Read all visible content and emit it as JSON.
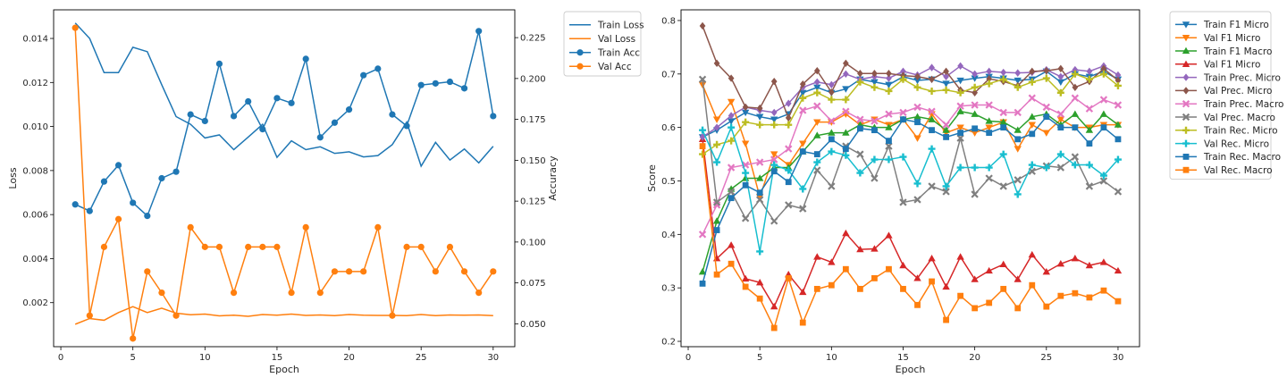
{
  "chart_data": [
    {
      "type": "line",
      "xlabel": "Epoch",
      "ylabel": "Loss",
      "ylabel_right": "Accuracy",
      "xlim": [
        -0.5,
        31.5
      ],
      "ylim": [
        0.0,
        0.0153
      ],
      "ylim_right": [
        0.036,
        0.242
      ],
      "x_ticks": [
        "0",
        "5",
        "10",
        "15",
        "20",
        "25",
        "30"
      ],
      "y_ticks": [
        "0.002",
        "0.004",
        "0.006",
        "0.008",
        "0.010",
        "0.012",
        "0.014"
      ],
      "y_ticks_right": [
        "0.050",
        "0.075",
        "0.100",
        "0.125",
        "0.150",
        "0.175",
        "0.200",
        "0.225"
      ],
      "legend_position": "outside-right",
      "x": [
        1,
        2,
        3,
        4,
        5,
        6,
        7,
        8,
        9,
        10,
        11,
        12,
        13,
        14,
        15,
        16,
        17,
        18,
        19,
        20,
        21,
        22,
        23,
        24,
        25,
        26,
        27,
        28,
        29,
        30
      ],
      "series": [
        {
          "name": "Train Loss",
          "axis": "left",
          "color": "#1f77b4",
          "marker": "none",
          "values": [
            0.0147,
            0.014,
            0.01245,
            0.01245,
            0.0136,
            0.0134,
            0.0119,
            0.01045,
            0.0101,
            0.00948,
            0.00962,
            0.00895,
            0.00952,
            0.0101,
            0.0086,
            0.00935,
            0.00895,
            0.00908,
            0.00878,
            0.00885,
            0.00862,
            0.00868,
            0.00918,
            0.0102,
            0.0082,
            0.00928,
            0.00848,
            0.00898,
            0.00835,
            0.0091
          ]
        },
        {
          "name": "Val Loss",
          "axis": "left",
          "color": "#ff7f0e",
          "marker": "none",
          "values": [
            0.00102,
            0.00128,
            0.0012,
            0.00155,
            0.00182,
            0.00155,
            0.00175,
            0.00152,
            0.00145,
            0.00148,
            0.0014,
            0.00143,
            0.00138,
            0.00146,
            0.00143,
            0.00148,
            0.00142,
            0.00144,
            0.00141,
            0.00146,
            0.00143,
            0.00142,
            0.00142,
            0.00141,
            0.00146,
            0.00141,
            0.00144,
            0.00143,
            0.00144,
            0.00141
          ]
        },
        {
          "name": "Train Acc",
          "axis": "right",
          "color": "#1f77b4",
          "marker": "circle",
          "values": [
            0.123,
            0.119,
            0.137,
            0.147,
            0.124,
            0.116,
            0.139,
            0.143,
            0.178,
            0.174,
            0.209,
            0.177,
            0.186,
            0.169,
            0.188,
            0.185,
            0.212,
            0.164,
            0.173,
            0.181,
            0.202,
            0.206,
            0.178,
            0.171,
            0.196,
            0.197,
            0.198,
            0.194,
            0.229,
            0.177
          ]
        },
        {
          "name": "Val Acc",
          "axis": "right",
          "color": "#ff7f0e",
          "marker": "circle",
          "values": [
            0.231,
            0.055,
            0.097,
            0.114,
            0.041,
            0.082,
            0.069,
            0.055,
            0.109,
            0.097,
            0.097,
            0.069,
            0.097,
            0.097,
            0.097,
            0.069,
            0.109,
            0.069,
            0.082,
            0.082,
            0.082,
            0.109,
            0.055,
            0.097,
            0.097,
            0.082,
            0.097,
            0.082,
            0.069,
            0.082
          ]
        }
      ]
    },
    {
      "type": "line",
      "xlabel": "Epoch",
      "ylabel": "Score",
      "xlim": [
        -0.5,
        31.5
      ],
      "ylim": [
        0.19,
        0.82
      ],
      "x_ticks": [
        "0",
        "5",
        "10",
        "15",
        "20",
        "25",
        "30"
      ],
      "y_ticks": [
        "0.2",
        "0.3",
        "0.4",
        "0.5",
        "0.6",
        "0.7",
        "0.8"
      ],
      "legend_position": "outside-right",
      "x": [
        1,
        2,
        3,
        4,
        5,
        6,
        7,
        8,
        9,
        10,
        11,
        12,
        13,
        14,
        15,
        16,
        17,
        18,
        19,
        20,
        21,
        22,
        23,
        24,
        25,
        26,
        27,
        28,
        29,
        30
      ],
      "series": [
        {
          "name": "Train F1 Micro",
          "color": "#1f77b4",
          "marker": "triangle-down",
          "values": [
            0.582,
            0.595,
            0.612,
            0.628,
            0.62,
            0.615,
            0.625,
            0.665,
            0.675,
            0.665,
            0.672,
            0.69,
            0.685,
            0.68,
            0.695,
            0.688,
            0.69,
            0.682,
            0.688,
            0.692,
            0.695,
            0.692,
            0.688,
            0.69,
            0.705,
            0.685,
            0.7,
            0.695,
            0.705,
            0.69
          ]
        },
        {
          "name": "Val F1 Micro",
          "color": "#ff7f0e",
          "marker": "triangle-down",
          "values": [
            0.68,
            0.615,
            0.648,
            0.57,
            0.47,
            0.55,
            0.53,
            0.57,
            0.61,
            0.61,
            0.625,
            0.605,
            0.615,
            0.605,
            0.615,
            0.58,
            0.625,
            0.59,
            0.6,
            0.59,
            0.6,
            0.61,
            0.56,
            0.605,
            0.59,
            0.615,
            0.6,
            0.6,
            0.605,
            0.605
          ]
        },
        {
          "name": "Train F1 Macro",
          "color": "#2ca02c",
          "marker": "triangle-up",
          "values": [
            0.33,
            0.425,
            0.485,
            0.505,
            0.505,
            0.525,
            0.525,
            0.555,
            0.585,
            0.59,
            0.59,
            0.605,
            0.6,
            0.6,
            0.615,
            0.62,
            0.615,
            0.595,
            0.63,
            0.625,
            0.612,
            0.61,
            0.595,
            0.62,
            0.625,
            0.605,
            0.625,
            0.595,
            0.625,
            0.605
          ]
        },
        {
          "name": "Val F1 Micro",
          "color": "#d62728",
          "marker": "triangle-up",
          "values": [
            0.578,
            0.355,
            0.38,
            0.317,
            0.31,
            0.265,
            0.325,
            0.292,
            0.358,
            0.348,
            0.402,
            0.372,
            0.373,
            0.398,
            0.342,
            0.318,
            0.355,
            0.302,
            0.358,
            0.316,
            0.332,
            0.344,
            0.316,
            0.362,
            0.33,
            0.345,
            0.355,
            0.342,
            0.348,
            0.332
          ]
        },
        {
          "name": "Train Prec. Micro",
          "color": "#9467bd",
          "marker": "diamond",
          "values": [
            0.582,
            0.6,
            0.622,
            0.638,
            0.632,
            0.628,
            0.645,
            0.675,
            0.685,
            0.68,
            0.7,
            0.69,
            0.695,
            0.692,
            0.705,
            0.698,
            0.712,
            0.695,
            0.715,
            0.7,
            0.705,
            0.703,
            0.702,
            0.703,
            0.708,
            0.695,
            0.708,
            0.705,
            0.715,
            0.698
          ]
        },
        {
          "name": "Val Prec. Micro",
          "color": "#8c564b",
          "marker": "diamond",
          "values": [
            0.79,
            0.72,
            0.692,
            0.638,
            0.636,
            0.686,
            0.618,
            0.681,
            0.706,
            0.666,
            0.72,
            0.701,
            0.701,
            0.701,
            0.697,
            0.695,
            0.69,
            0.705,
            0.67,
            0.665,
            0.691,
            0.686,
            0.678,
            0.705,
            0.706,
            0.71,
            0.675,
            0.686,
            0.71,
            0.688
          ]
        },
        {
          "name": "Train Prec. Macro",
          "color": "#e377c2",
          "marker": "x",
          "values": [
            0.4,
            0.455,
            0.525,
            0.53,
            0.535,
            0.54,
            0.56,
            0.632,
            0.64,
            0.612,
            0.63,
            0.615,
            0.612,
            0.625,
            0.628,
            0.638,
            0.63,
            0.605,
            0.64,
            0.642,
            0.642,
            0.628,
            0.628,
            0.655,
            0.638,
            0.625,
            0.655,
            0.635,
            0.652,
            0.642
          ]
        },
        {
          "name": "Val Prec. Macro",
          "color": "#7f7f7f",
          "marker": "x",
          "values": [
            0.69,
            0.46,
            0.48,
            0.43,
            0.465,
            0.425,
            0.455,
            0.448,
            0.52,
            0.49,
            0.565,
            0.55,
            0.505,
            0.565,
            0.46,
            0.465,
            0.49,
            0.48,
            0.58,
            0.475,
            0.505,
            0.49,
            0.502,
            0.518,
            0.528,
            0.525,
            0.545,
            0.49,
            0.5,
            0.48
          ]
        },
        {
          "name": "Train Rec. Micro",
          "color": "#bcbd22",
          "marker": "plus",
          "values": [
            0.55,
            0.568,
            0.575,
            0.61,
            0.605,
            0.605,
            0.605,
            0.655,
            0.665,
            0.652,
            0.652,
            0.685,
            0.675,
            0.668,
            0.69,
            0.675,
            0.668,
            0.67,
            0.665,
            0.675,
            0.682,
            0.69,
            0.675,
            0.685,
            0.692,
            0.665,
            0.7,
            0.69,
            0.7,
            0.678
          ]
        },
        {
          "name": "Val Rec. Micro",
          "color": "#17becf",
          "marker": "plus",
          "values": [
            0.595,
            0.535,
            0.6,
            0.515,
            0.368,
            0.53,
            0.52,
            0.485,
            0.535,
            0.555,
            0.548,
            0.515,
            0.54,
            0.54,
            0.545,
            0.495,
            0.56,
            0.49,
            0.525,
            0.525,
            0.525,
            0.55,
            0.475,
            0.53,
            0.525,
            0.55,
            0.53,
            0.53,
            0.51,
            0.54
          ]
        },
        {
          "name": "Train Rec. Macro",
          "color": "#1f77b4",
          "marker": "square",
          "values": [
            0.308,
            0.408,
            0.468,
            0.492,
            0.478,
            0.518,
            0.498,
            0.555,
            0.55,
            0.578,
            0.56,
            0.598,
            0.595,
            0.575,
            0.615,
            0.61,
            0.595,
            0.582,
            0.59,
            0.598,
            0.59,
            0.6,
            0.578,
            0.588,
            0.62,
            0.6,
            0.6,
            0.57,
            0.6,
            0.578
          ]
        },
        {
          "name": "Val Rec. Macro",
          "color": "#ff7f0e",
          "marker": "square",
          "values": [
            0.565,
            0.325,
            0.345,
            0.302,
            0.28,
            0.225,
            0.318,
            0.235,
            0.298,
            0.305,
            0.335,
            0.298,
            0.318,
            0.335,
            0.298,
            0.268,
            0.312,
            0.24,
            0.285,
            0.262,
            0.272,
            0.298,
            0.262,
            0.305,
            0.265,
            0.285,
            0.29,
            0.282,
            0.295,
            0.275
          ]
        }
      ]
    }
  ]
}
